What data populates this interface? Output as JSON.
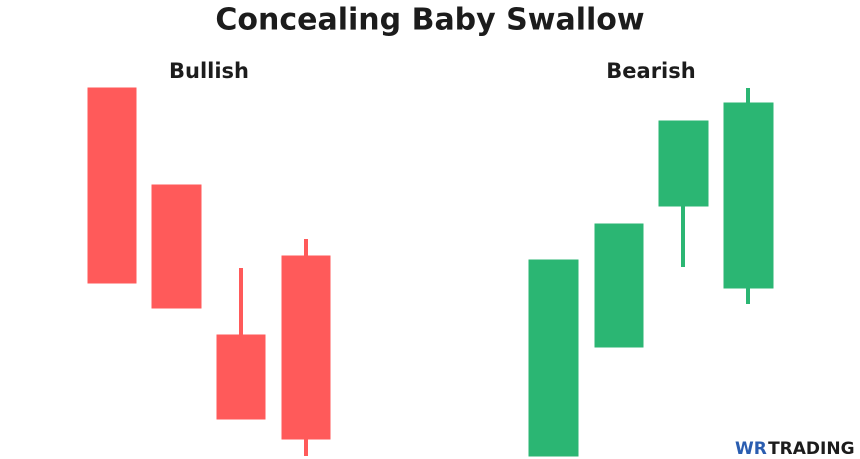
{
  "title": "Concealing Baby Swallow",
  "panels": [
    {
      "label": "Bullish"
    },
    {
      "label": "Bearish"
    }
  ],
  "logo": {
    "mark": "WR",
    "text": "TRADING"
  }
}
